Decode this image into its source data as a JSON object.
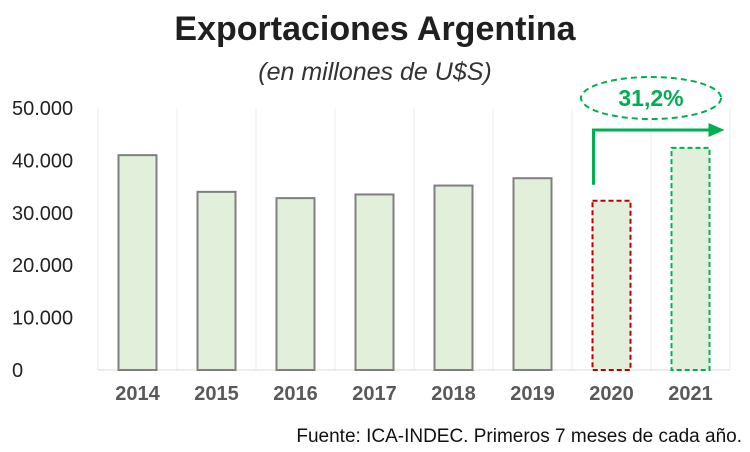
{
  "chart_data": {
    "type": "bar",
    "title": "Exportaciones Argentina",
    "subtitle": "(en millones de U$S)",
    "categories": [
      "2014",
      "2015",
      "2016",
      "2017",
      "2018",
      "2019",
      "2020",
      "2021"
    ],
    "values": [
      41000,
      34000,
      32800,
      33500,
      35200,
      36600,
      32300,
      42400
    ],
    "ylim": [
      0,
      50000
    ],
    "yticks": [
      0,
      10000,
      20000,
      30000,
      40000,
      50000
    ],
    "ytick_labels": [
      "0",
      "10.000",
      "20.000",
      "30.000",
      "40.000",
      "50.000"
    ],
    "grid": "vertical",
    "highlight": {
      "from_category": "2020",
      "to_category": "2021",
      "label": "31,2%",
      "from_color": "#c00000",
      "to_color": "#00b050"
    },
    "source": "Fuente: ICA-INDEC. Primeros 7 meses de cada año."
  },
  "colors": {
    "bar_fill": "#e2efda",
    "bar_stroke": "#7f7f7f",
    "grid": "#ececec"
  }
}
